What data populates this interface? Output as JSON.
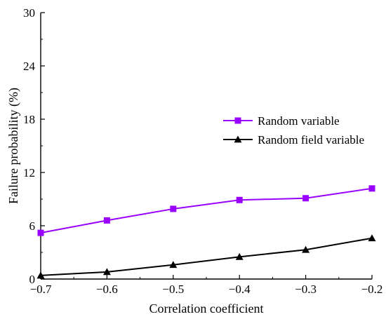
{
  "chart_data": {
    "type": "line",
    "title": "",
    "xlabel": "Correlation coefficient",
    "ylabel": "Failure probability (%)",
    "xlim": [
      -0.7,
      -0.2
    ],
    "ylim": [
      0,
      30
    ],
    "x_ticks": [
      -0.7,
      -0.6,
      -0.5,
      -0.4,
      -0.3,
      -0.2
    ],
    "x_tick_labels": [
      "−0.7",
      "−0.6",
      "−0.5",
      "−0.4",
      "−0.3",
      "−0.2"
    ],
    "y_ticks": [
      0,
      6,
      12,
      18,
      24,
      30
    ],
    "y_tick_labels": [
      "0",
      "6",
      "12",
      "18",
      "24",
      "30"
    ],
    "grid": false,
    "legend_position": "center-right",
    "x": [
      -0.7,
      -0.6,
      -0.5,
      -0.4,
      -0.3,
      -0.2
    ],
    "series": [
      {
        "name": "Random variable",
        "values": [
          5.2,
          6.6,
          7.9,
          8.9,
          9.1,
          10.2
        ],
        "color": "#9900ff",
        "marker": "square"
      },
      {
        "name": "Random field variable",
        "values": [
          0.4,
          0.8,
          1.6,
          2.5,
          3.3,
          4.6
        ],
        "color": "#000000",
        "marker": "triangle"
      }
    ]
  }
}
